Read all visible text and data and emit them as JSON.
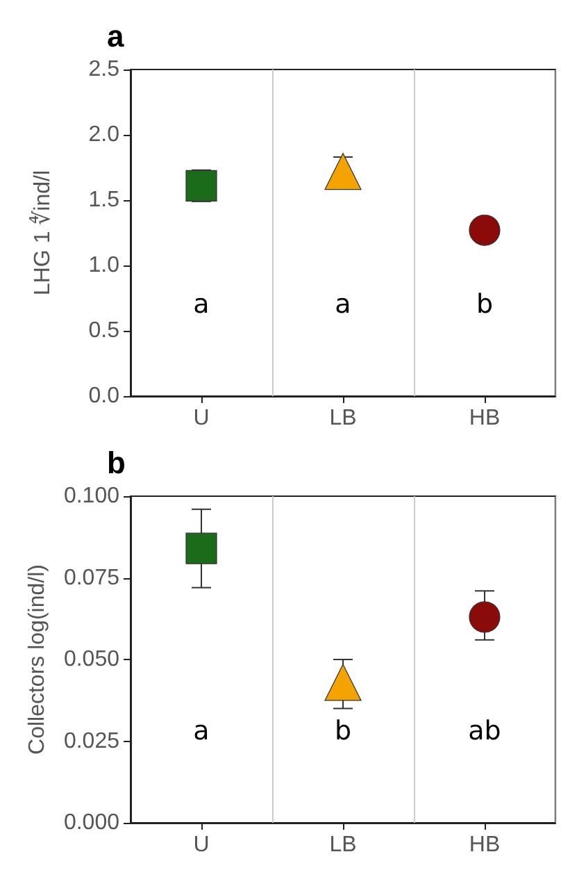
{
  "chart_data": [
    {
      "type": "scatter",
      "title": "a",
      "ylabel": "LHG 1 ∜ind/l",
      "categories": [
        "U",
        "LB",
        "HB"
      ],
      "ylim": [
        0,
        2.5
      ],
      "yticks": [
        {
          "value": 0,
          "label": "0.0"
        },
        {
          "value": 0.5,
          "label": "0.5"
        },
        {
          "value": 1,
          "label": "1.0"
        },
        {
          "value": 1.5,
          "label": "1.5"
        },
        {
          "value": 2,
          "label": "2.0"
        },
        {
          "value": 2.5,
          "label": "2.5"
        }
      ],
      "grid": "x",
      "series": [
        {
          "color": "#1b6b1b",
          "marker": "square",
          "values": [
            1.61,
            null,
            null
          ],
          "errors": [
            0.12,
            null,
            null
          ]
        },
        {
          "color": "#f5a300",
          "marker": "triangle",
          "values": [
            null,
            1.72,
            null
          ],
          "errors": [
            null,
            0.11,
            null
          ]
        },
        {
          "color": "#8b0a0a",
          "marker": "circle",
          "values": [
            null,
            null,
            1.27
          ],
          "errors": [
            null,
            null,
            null
          ]
        }
      ],
      "annotations": [
        "a",
        "a",
        "b"
      ]
    },
    {
      "type": "scatter",
      "title": "b",
      "ylabel": "Collectors log(ind/l)",
      "categories": [
        "U",
        "LB",
        "HB"
      ],
      "ylim": [
        0,
        0.1
      ],
      "yticks": [
        {
          "value": 0,
          "label": "0.000"
        },
        {
          "value": 0.025,
          "label": "0.025"
        },
        {
          "value": 0.05,
          "label": "0.050"
        },
        {
          "value": 0.075,
          "label": "0.075"
        },
        {
          "value": 0.1,
          "label": "0.100"
        }
      ],
      "grid": "x",
      "series": [
        {
          "color": "#1b6b1b",
          "marker": "square",
          "values": [
            0.084,
            null,
            null
          ],
          "errors": [
            [
              0.072,
              0.096
            ],
            null,
            null
          ]
        },
        {
          "color": "#f5a300",
          "marker": "triangle",
          "values": [
            null,
            0.043,
            null
          ],
          "errors": [
            null,
            [
              0.035,
              0.05
            ],
            null
          ]
        },
        {
          "color": "#8b0a0a",
          "marker": "circle",
          "values": [
            null,
            null,
            0.063
          ],
          "errors": [
            null,
            null,
            [
              0.056,
              0.071
            ]
          ]
        }
      ],
      "annotations": [
        "a",
        "b",
        "ab"
      ]
    }
  ]
}
